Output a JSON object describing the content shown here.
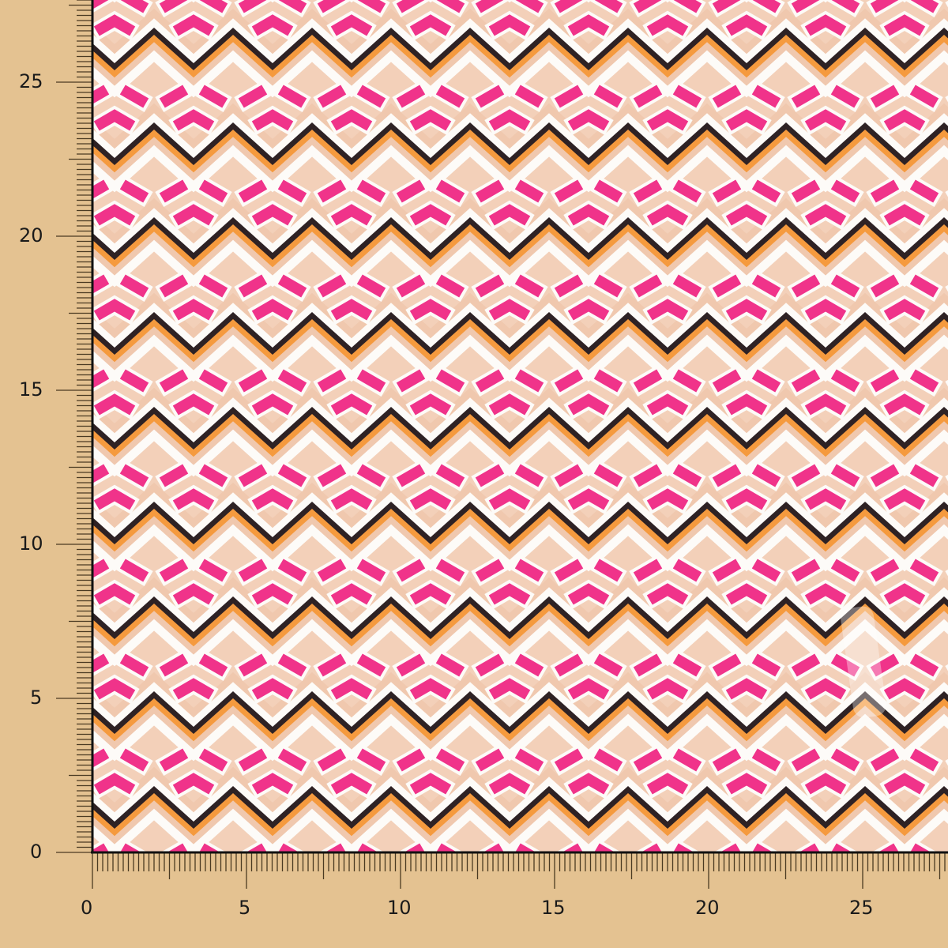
{
  "fabric": {
    "pattern": "zigzag chevron with diagonal bricks",
    "colors": {
      "pink": "#f0338a",
      "black": "#2e2224",
      "orange": "#f59a3e",
      "peach": "#f0cbb1",
      "white": "#fdfbf8",
      "ruler_bg": "#e4c291"
    }
  },
  "ruler": {
    "y_labels": [
      "0",
      "5",
      "10",
      "15",
      "20",
      "25"
    ],
    "x_labels": [
      "0",
      "5",
      "10",
      "15",
      "20",
      "25"
    ]
  }
}
